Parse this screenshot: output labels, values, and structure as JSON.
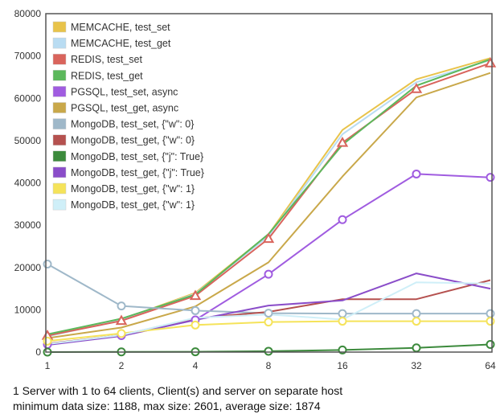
{
  "chart_data": {
    "type": "line",
    "x": [
      1,
      2,
      4,
      8,
      16,
      32,
      64
    ],
    "x_ticks": [
      "1",
      "2",
      "4",
      "8",
      "16",
      "32",
      "64"
    ],
    "x_scale": "log2",
    "y_ticks": [
      "0",
      "10000",
      "20000",
      "30000",
      "40000",
      "50000",
      "60000",
      "70000",
      "80000"
    ],
    "ylim": [
      0,
      80000
    ],
    "grid": false,
    "legend_position": "top-left",
    "series": [
      {
        "name": "MEMCACHE, test_set",
        "color": "#e8c34a",
        "marker": "none",
        "values": [
          3800,
          7700,
          14000,
          27800,
          52500,
          64500,
          69500
        ]
      },
      {
        "name": "MEMCACHE, test_get",
        "color": "#b9dcf2",
        "marker": "none",
        "values": [
          3700,
          7600,
          13800,
          27400,
          51500,
          63800,
          69000
        ]
      },
      {
        "name": "REDIS, test_set",
        "color": "#d9645c",
        "marker": "triangle",
        "values": [
          3900,
          7400,
          13300,
          26800,
          49500,
          62200,
          68300
        ]
      },
      {
        "name": "REDIS, test_get",
        "color": "#5cb85c",
        "marker": "none",
        "values": [
          4200,
          7900,
          13600,
          27900,
          49000,
          63000,
          69200
        ]
      },
      {
        "name": "PGSQL, test_set, async",
        "color": "#a05ce0",
        "marker": "circle",
        "values": [
          1800,
          3900,
          7600,
          18400,
          31300,
          42100,
          41300
        ]
      },
      {
        "name": "PGSQL, test_get, async",
        "color": "#c9a84a",
        "marker": "none",
        "values": [
          3300,
          5800,
          10800,
          21200,
          41500,
          60200,
          66000
        ]
      },
      {
        "name": "MongoDB, test_set, {\"w\": 0}",
        "color": "#9fb8c9",
        "marker": "circle",
        "values": [
          20800,
          10900,
          9800,
          9200,
          9100,
          9100,
          9100
        ]
      },
      {
        "name": "MongoDB, test_get, {\"w\": 0}",
        "color": "#b5514f",
        "marker": "none",
        "values": [
          2000,
          4000,
          8000,
          9500,
          12500,
          12500,
          17000
        ]
      },
      {
        "name": "MongoDB, test_set, {\"j\": True}",
        "color": "#3c8a3c",
        "marker": "circle",
        "values": [
          0,
          50,
          80,
          200,
          500,
          1000,
          1800
        ]
      },
      {
        "name": "MongoDB, test_get, {\"j\": True}",
        "color": "#8a4dc9",
        "marker": "none",
        "values": [
          1700,
          3800,
          7600,
          11000,
          12200,
          18600,
          15000
        ]
      },
      {
        "name": "MongoDB, test_get, {\"w\": 1}",
        "color": "#f5e35a",
        "marker": "circle",
        "values": [
          2600,
          4400,
          6400,
          7100,
          7300,
          7300,
          7300
        ]
      },
      {
        "name": "MongoDB, test_get, {\"w\": 1}",
        "color": "#cfeff8",
        "marker": "none",
        "values": [
          1900,
          4000,
          8100,
          8900,
          7700,
          16500,
          16200
        ]
      }
    ]
  },
  "caption": {
    "line1": "1 Server with 1 to 64 clients, Client(s) and server on separate host",
    "line2": "minimum data size: 1188, max size: 2601, average size: 1874"
  }
}
